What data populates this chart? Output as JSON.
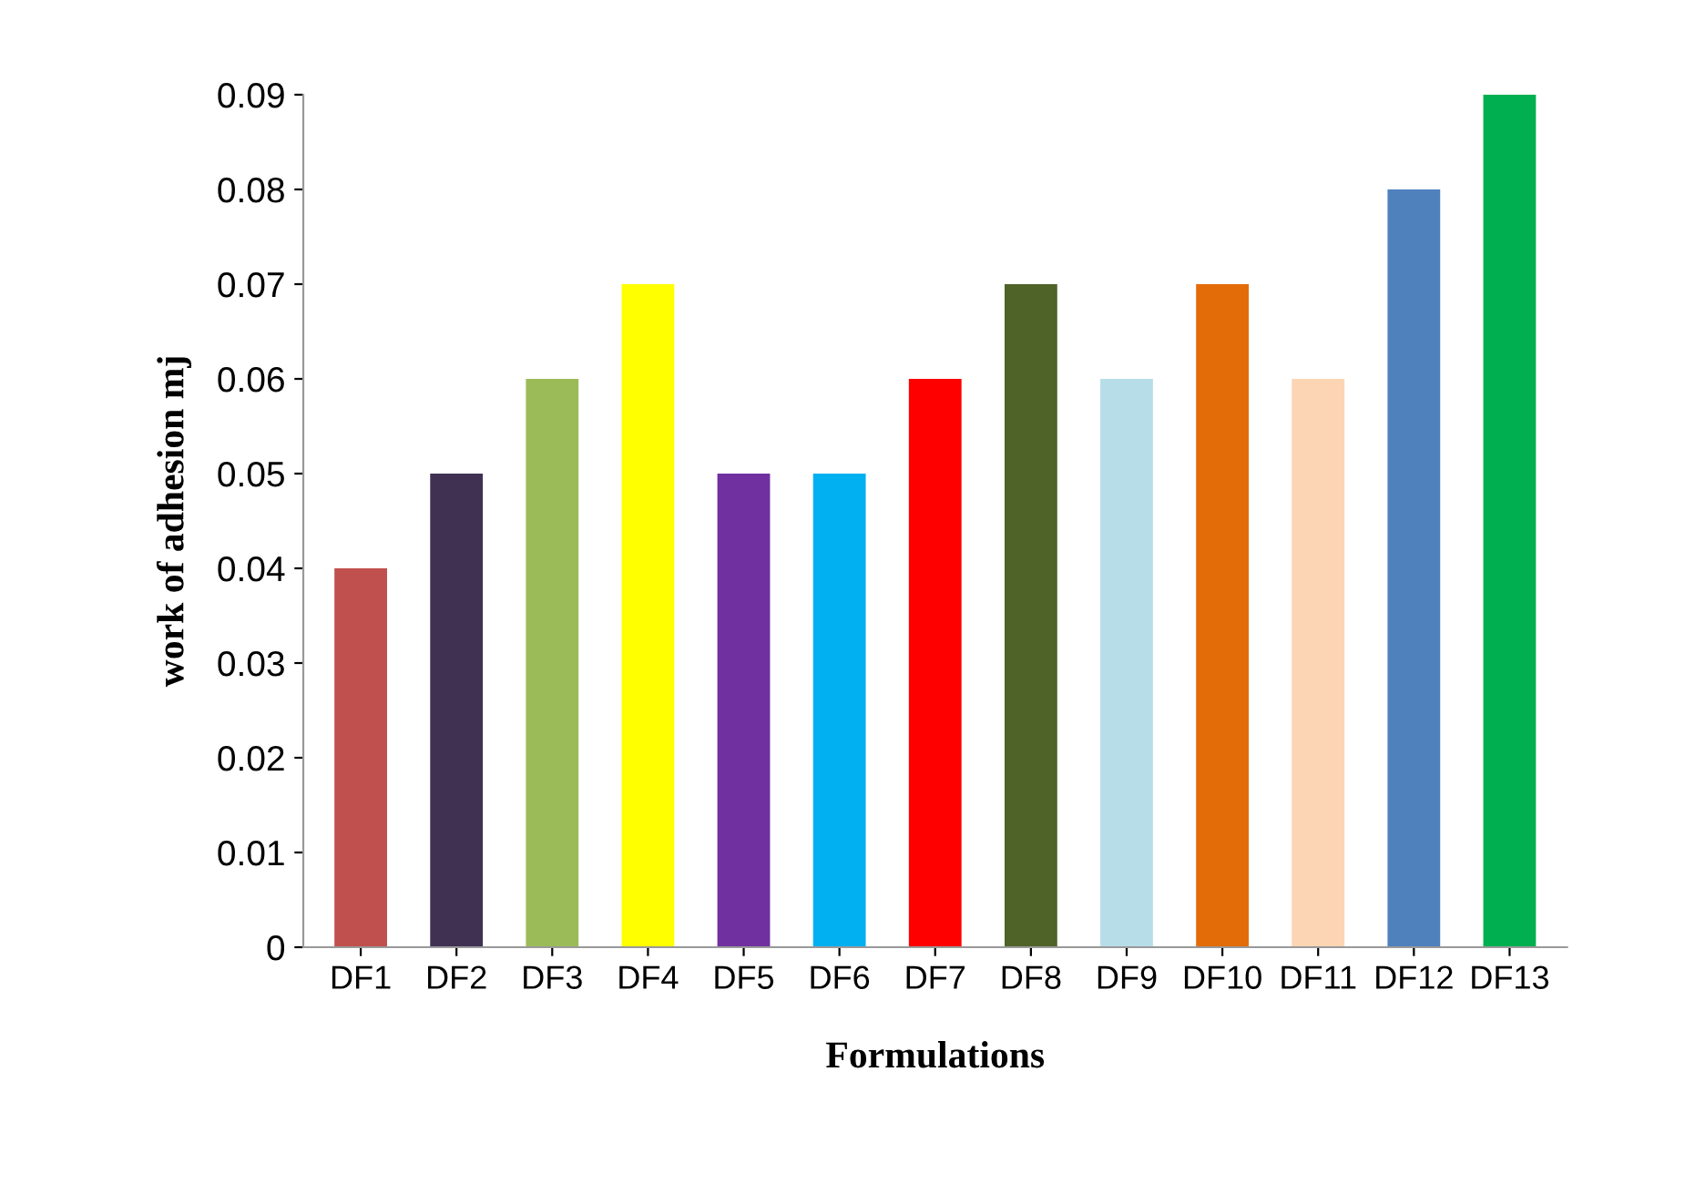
{
  "chart_data": {
    "type": "bar",
    "xlabel": "Formulations",
    "ylabel": "work of adhesion mj",
    "categories": [
      "DF1",
      "DF2",
      "DF3",
      "DF4",
      "DF5",
      "DF6",
      "DF7",
      "DF8",
      "DF9",
      "DF10",
      "DF11",
      "DF12",
      "DF13"
    ],
    "values": [
      0.04,
      0.05,
      0.06,
      0.07,
      0.05,
      0.05,
      0.06,
      0.07,
      0.06,
      0.07,
      0.06,
      0.08,
      0.09
    ],
    "colors": [
      "#c0504d",
      "#403152",
      "#9bbb59",
      "#ffff00",
      "#7030a0",
      "#00b0f0",
      "#ff0000",
      "#4f6228",
      "#b7dee8",
      "#e36c09",
      "#fcd5b4",
      "#4f81bd",
      "#00b050"
    ],
    "ylim": [
      0,
      0.09
    ],
    "yticks": [
      0,
      0.01,
      0.02,
      0.03,
      0.04,
      0.05,
      0.06,
      0.07,
      0.08,
      0.09
    ],
    "grid": false,
    "legend": false
  }
}
